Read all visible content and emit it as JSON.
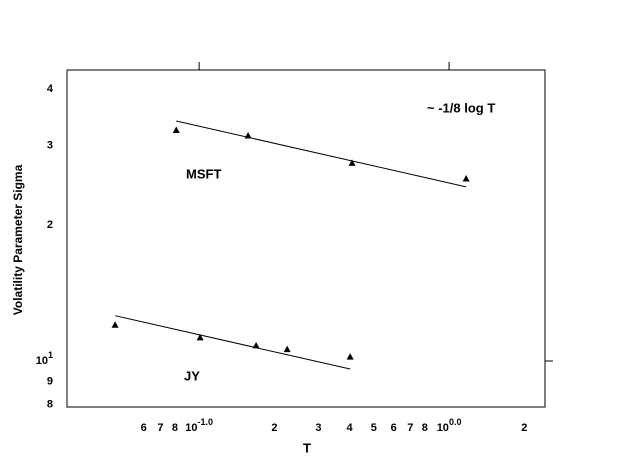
{
  "chart_data": {
    "type": "scatter",
    "log_x": true,
    "log_y": true,
    "xlabel": "T",
    "ylabel": "Volatility Parameter  Sigma",
    "annotation": "~ -1/8 log T",
    "xlim": [
      0.0296,
      2.42
    ],
    "ylim": [
      7.91,
      44.1
    ],
    "xticks": [
      {
        "value": 0.06,
        "label": "6"
      },
      {
        "value": 0.07,
        "label": "7"
      },
      {
        "value": 0.08,
        "label": "8"
      },
      {
        "value": 0.1,
        "label": "10",
        "exponent": "-1.0"
      },
      {
        "value": 0.2,
        "label": "2"
      },
      {
        "value": 0.3,
        "label": "3"
      },
      {
        "value": 0.4,
        "label": "4"
      },
      {
        "value": 0.5,
        "label": "5"
      },
      {
        "value": 0.6,
        "label": "6"
      },
      {
        "value": 0.7,
        "label": "7"
      },
      {
        "value": 0.8,
        "label": "8"
      },
      {
        "value": 1,
        "label": "10",
        "exponent": "0.0"
      },
      {
        "value": 2,
        "label": "2"
      }
    ],
    "yticks": [
      8,
      9,
      {
        "value": 10,
        "label": "10",
        "exponent": "1"
      },
      {
        "value": 20,
        "label": "2"
      },
      {
        "value": 30,
        "label": "3"
      },
      {
        "value": 40,
        "label": "4"
      }
    ],
    "series": [
      {
        "name": "MSFT",
        "color": "#000000",
        "x": [
          0.081,
          0.157,
          0.409,
          1.17
        ],
        "values": [
          32.4,
          31.5,
          27.4,
          25.3
        ],
        "fit": {
          "x": [
            0.081,
            1.17
          ],
          "values": [
            34.0,
            24.3
          ]
        }
      },
      {
        "name": "JY",
        "color": "#000000",
        "x": [
          0.0461,
          0.1009,
          0.169,
          0.225,
          0.402
        ],
        "values": [
          12.0,
          11.25,
          10.8,
          10.6,
          10.2
        ],
        "fit": {
          "x": [
            0.0461,
            0.402
          ],
          "values": [
            12.6,
            9.6
          ]
        }
      }
    ]
  }
}
